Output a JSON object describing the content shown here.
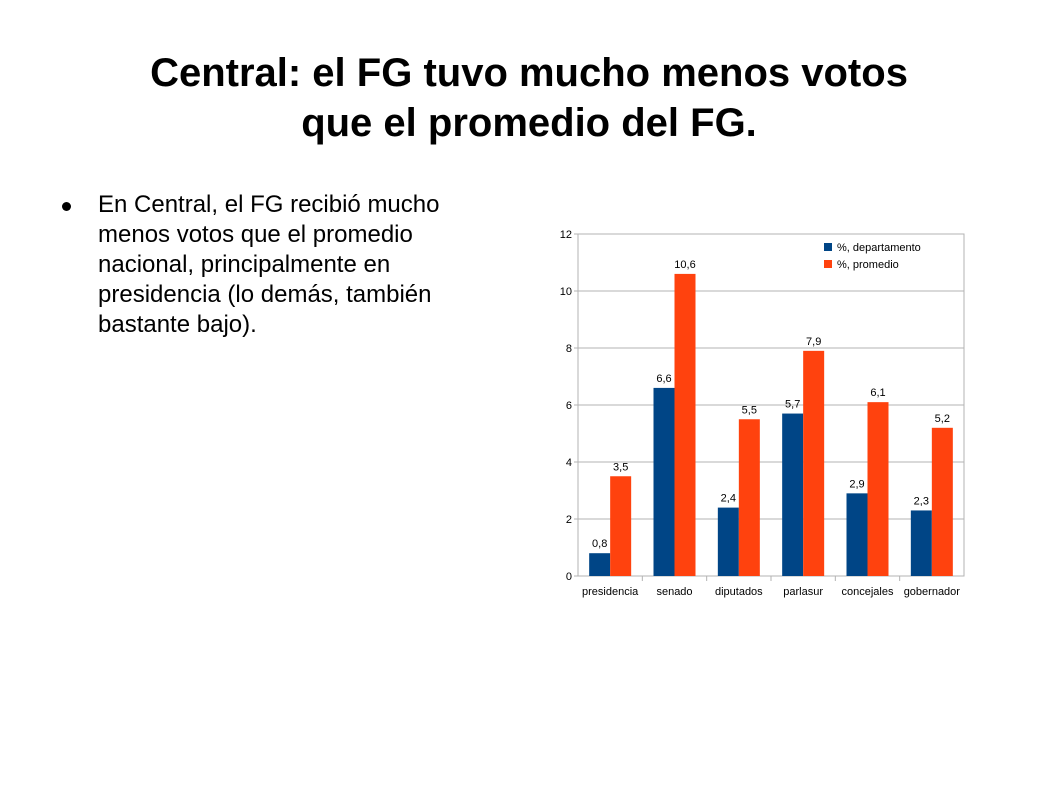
{
  "slide": {
    "title_line1": "Central: el FG tuvo mucho menos votos",
    "title_line2": "que el promedio del FG.",
    "bullet_text": "En Central, el FG recibió mucho menos votos que el promedio nacional, principalmente en presidencia (lo demás, también bastante bajo)."
  },
  "chart_data": {
    "type": "bar",
    "title": "",
    "xlabel": "",
    "ylabel": "",
    "categories": [
      "presidencia",
      "senado",
      "diputados",
      "parlasur",
      "concejales",
      "gobernador"
    ],
    "series": [
      {
        "name": "%, departamento",
        "values": [
          0.8,
          6.6,
          2.4,
          5.7,
          2.9,
          2.3
        ],
        "labels": [
          "0,8",
          "6,6",
          "2,4",
          "5,7",
          "2,9",
          "2,3"
        ],
        "color": "#004586"
      },
      {
        "name": "%, promedio",
        "values": [
          3.5,
          10.6,
          5.5,
          7.9,
          6.1,
          5.2
        ],
        "labels": [
          "3,5",
          "10,6",
          "5,5",
          "7,9",
          "6,1",
          "5,2"
        ],
        "color": "#ff420e"
      }
    ],
    "ylim": [
      0,
      12
    ],
    "yticks": [
      0,
      2,
      4,
      6,
      8,
      10,
      12
    ],
    "ytick_labels": [
      "0",
      "2",
      "4",
      "6",
      "8",
      "10",
      "12"
    ],
    "grid": true,
    "legend_position": "top-right"
  }
}
